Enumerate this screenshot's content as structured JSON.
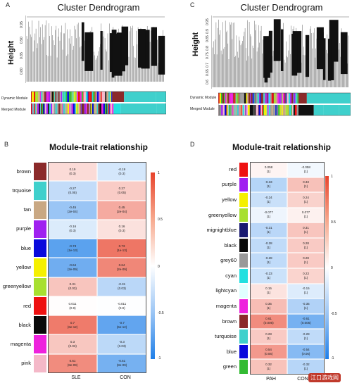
{
  "panelA": {
    "letter": "A",
    "title": "Cluster Dendrogram",
    "ylabel": "Height",
    "ticks": [
      "0.95",
      "0.90",
      "0.85",
      "0.80"
    ],
    "track_labels": [
      "Dynamic Module",
      "Merged Module"
    ]
  },
  "panelB": {
    "letter": "B",
    "title": "Module-trait relationship",
    "xlabels": [
      "SLE",
      "CON"
    ],
    "legend_ticks": [
      "1",
      "0.5",
      "0",
      "-0.5",
      "-1"
    ],
    "rows": [
      {
        "name": "brown",
        "color": "#8b2a2a",
        "c1": "0.19",
        "p1": "(0.3)",
        "c2": "-0.19",
        "p2": "(0.3)",
        "v1": 0.19,
        "v2": -0.19
      },
      {
        "name": "trquoise",
        "color": "#3fd0cc",
        "c1": "-0.27",
        "p1": "(0.05)",
        "c2": "0.27",
        "p2": "(0.05)",
        "v1": -0.27,
        "v2": 0.27
      },
      {
        "name": "tan",
        "color": "#c9a883",
        "c1": "-0.45",
        "p1": "(2e-04)",
        "c2": "0.45",
        "p2": "(2e-04)",
        "v1": -0.45,
        "v2": 0.45
      },
      {
        "name": "purple",
        "color": "#a020f0",
        "c1": "-0.16",
        "p1": "(0.3)",
        "c2": "0.16",
        "p2": "(0.3)",
        "v1": -0.16,
        "v2": 0.16
      },
      {
        "name": "blue",
        "color": "#0a0adc",
        "c1": "-0.73",
        "p1": "(1e-13)",
        "c2": "0.73",
        "p2": "(1e-13)",
        "v1": -0.73,
        "v2": 0.73
      },
      {
        "name": "yellow",
        "color": "#f5f000",
        "c1": "-0.64",
        "p1": "(2e-09)",
        "c2": "0.64",
        "p2": "(2e-09)",
        "v1": -0.64,
        "v2": 0.64
      },
      {
        "name": "greenyellow",
        "color": "#a8e030",
        "c1": "0.31",
        "p1": "(0.03)",
        "c2": "-0.31",
        "p2": "(0.03)",
        "v1": 0.31,
        "v2": -0.31
      },
      {
        "name": "red",
        "color": "#ee1111",
        "c1": "0.011",
        "p1": "(0.9)",
        "c2": "-0.011",
        "p2": "(0.9)",
        "v1": 0.011,
        "v2": -0.011
      },
      {
        "name": "black",
        "color": "#0a0a0a",
        "c1": "0.7",
        "p1": "(6e-12)",
        "c2": "-0.7",
        "p2": "(6e-12)",
        "v1": 0.7,
        "v2": -0.7
      },
      {
        "name": "magenta",
        "color": "#ee22dd",
        "c1": "0.3",
        "p1": "(0.03)",
        "c2": "-0.3",
        "p2": "(0.03)",
        "v1": 0.3,
        "v2": -0.3
      },
      {
        "name": "pink",
        "color": "#f4b8c8",
        "c1": "0.61",
        "p1": "(8e-09)",
        "c2": "-0.61",
        "p2": "(8e-09)",
        "v1": 0.61,
        "v2": -0.61
      }
    ]
  },
  "panelC": {
    "letter": "C",
    "title": "Cluster Dendrogram",
    "ylabel": "Height",
    "ticks": [
      "0.95",
      "0.9",
      "0.85",
      "0.8",
      "0.75",
      "0.7",
      "0.65",
      "0.6"
    ],
    "track_labels": [
      "Dynamic Module",
      "Merged Module"
    ]
  },
  "panelD": {
    "letter": "D",
    "title": "Module-trait relationship",
    "xlabels": [
      "PAH",
      "CON"
    ],
    "legend_ticks": [
      "1",
      "0.5",
      "0",
      "-0.5",
      "-1"
    ],
    "rows": [
      {
        "name": "red",
        "color": "#ee1111",
        "c1": "0.058",
        "p1": "(1)",
        "c2": "-0.058",
        "p2": "(1)",
        "v1": 0.058,
        "v2": -0.058
      },
      {
        "name": "purple",
        "color": "#a020f0",
        "c1": "-0.33",
        "p1": "(1)",
        "c2": "0.33",
        "p2": "(1)",
        "v1": -0.33,
        "v2": 0.33
      },
      {
        "name": "yellow",
        "color": "#f5f000",
        "c1": "-0.24",
        "p1": "(1)",
        "c2": "0.24",
        "p2": "(1)",
        "v1": -0.24,
        "v2": 0.24
      },
      {
        "name": "greenyellow",
        "color": "#a8e030",
        "c1": "-0.077",
        "p1": "(1)",
        "c2": "0.077",
        "p2": "(1)",
        "v1": -0.077,
        "v2": 0.077
      },
      {
        "name": "mignightblue",
        "color": "#191970",
        "c1": "-0.31",
        "p1": "(1)",
        "c2": "0.31",
        "p2": "(1)",
        "v1": -0.31,
        "v2": 0.31
      },
      {
        "name": "black",
        "color": "#0a0a0a",
        "c1": "-0.28",
        "p1": "(1)",
        "c2": "0.28",
        "p2": "(1)",
        "v1": -0.28,
        "v2": 0.28
      },
      {
        "name": "grey60",
        "color": "#999999",
        "c1": "-0.28",
        "p1": "(1)",
        "c2": "0.28",
        "p2": "(1)",
        "v1": -0.28,
        "v2": 0.28
      },
      {
        "name": "cyan",
        "color": "#22e0e0",
        "c1": "-0.23",
        "p1": "(1)",
        "c2": "0.23",
        "p2": "(1)",
        "v1": -0.23,
        "v2": 0.23
      },
      {
        "name": "lightcyan",
        "color": "#e0ffff",
        "c1": "0.15",
        "p1": "(1)",
        "c2": "-0.15",
        "p2": "(1)",
        "v1": 0.15,
        "v2": -0.15
      },
      {
        "name": "magenta",
        "color": "#ee22dd",
        "c1": "0.35",
        "p1": "(1)",
        "c2": "-0.35",
        "p2": "(1)",
        "v1": 0.35,
        "v2": -0.35
      },
      {
        "name": "brown",
        "color": "#8b2a2a",
        "c1": "0.61",
        "p1": "(0.006)",
        "c2": "-0.61",
        "p2": "(0.006)",
        "v1": 0.61,
        "v2": -0.61
      },
      {
        "name": "turquoise",
        "color": "#3fd0cc",
        "c1": "0.28",
        "p1": "(1)",
        "c2": "-0.28",
        "p2": "(1)",
        "v1": 0.28,
        "v2": -0.28
      },
      {
        "name": "blue",
        "color": "#0a0adc",
        "c1": "0.54",
        "p1": "(0.06)",
        "c2": "-0.54",
        "p2": "(0.06)",
        "v1": 0.54,
        "v2": -0.54
      },
      {
        "name": "green",
        "color": "#33bb33",
        "c1": "0.32",
        "p1": "(1)",
        "c2": "-0.32",
        "p2": "(1)",
        "v1": 0.32,
        "v2": -0.32
      }
    ]
  },
  "watermark": "江口游戏网"
}
